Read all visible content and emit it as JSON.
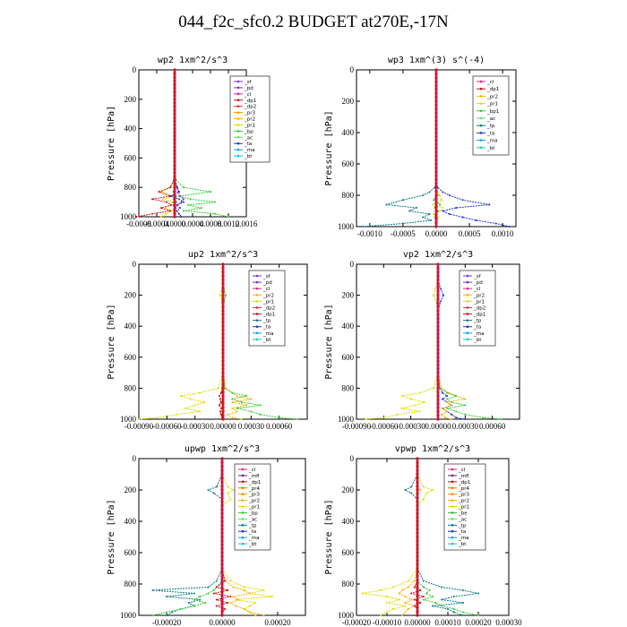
{
  "title": "044_f2c_sfc0.2  BUDGET at270E,-17N",
  "colors": {
    "_sf": "#8a2be2",
    "_pd": "#7b2fbf",
    "_cl": "#e0208a",
    "_mfl": "#5a2a8a",
    "_dp1": "#cc1010",
    "_dp2": "#e03030",
    "_dp3": "#cc1010",
    "_dp4": "#aa1030",
    "_pr1": "#dddd00",
    "_pr2": "#ffb000",
    "_pr3": "#ff8c00",
    "_pr4": "#ff7000",
    "_bp": "#33cc33",
    "_bp1": "#33cc33",
    "_ac": "#66dd66",
    "_be": "#33bb33",
    "_tp": "#0a7a8a",
    "_ta": "#2233cc",
    "_ma": "#00aacc",
    "_bt": "#00cccc",
    "budget": "#cc1010"
  },
  "chart_data": [
    {
      "type": "line",
      "title": "wp2   1xm^2/s^3",
      "ylabel": "Pressure [hPa]",
      "ylim": [
        1000,
        0
      ],
      "xlim": [
        -0.0008,
        0.0016
      ],
      "xticks": [
        "-0.0008",
        "-0.0004",
        "0.0000",
        "0.0004",
        "0.0008",
        "0.0012",
        "0.0016"
      ],
      "yticks": [
        "0",
        "200",
        "400",
        "600",
        "800",
        "1000"
      ],
      "legend": [
        "_sf",
        "_pd",
        "_cl",
        "_dp1",
        "_dp2",
        "_pr3",
        "_pr2",
        "_pr1",
        "_bp",
        "_ac",
        "_ta",
        "_ma",
        "_bt"
      ],
      "pressure": [
        0,
        100,
        200,
        300,
        400,
        500,
        600,
        700,
        750,
        800,
        830,
        860,
        880,
        900,
        920,
        940,
        960,
        980,
        1000
      ],
      "series": [
        {
          "name": "_bp",
          "values": [
            0,
            0,
            0,
            0,
            0,
            0,
            0,
            5e-06,
            3e-05,
            0.0002,
            0.0008,
            0.0001,
            0.00035,
            0.0009,
            0.0003,
            0.0006,
            0.0002,
            0.0009,
            0.0012
          ]
        },
        {
          "name": "_pr1",
          "values": [
            0,
            0,
            0,
            0,
            0,
            0,
            0,
            0,
            -1e-05,
            -8e-05,
            -0.0003,
            -4e-05,
            -0.00026,
            -5e-05,
            -0.0001,
            -0.0002,
            -5e-05,
            -0.0002,
            -0.0003
          ]
        },
        {
          "name": "_dp1",
          "values": [
            0,
            0,
            0,
            0,
            0,
            0,
            0,
            0,
            -2e-05,
            -0.0001,
            -0.00035,
            -0.0001,
            -0.0005,
            -0.00018,
            -8e-05,
            -0.0003,
            -0.0001,
            -0.0005,
            -0.00085
          ]
        },
        {
          "name": "_ta",
          "values": [
            0,
            0,
            0,
            0,
            0,
            0,
            0,
            0,
            1e-05,
            6e-05,
            0.0001,
            -8e-05,
            0.0001,
            0.0002,
            5e-05,
            0.00012,
            5e-05,
            0.0001,
            0.00015
          ]
        },
        {
          "name": "_pd",
          "values": [
            0,
            0,
            0,
            0,
            0,
            0,
            0,
            0,
            1e-05,
            5e-05,
            8e-05,
            0.00012,
            0.0002,
            0.00015,
            6e-05,
            2e-05,
            1e-05,
            1e-05,
            0
          ]
        },
        {
          "name": "_ma",
          "values": [
            0,
            0,
            0,
            0,
            0,
            0,
            0,
            0,
            0,
            2e-05,
            -3e-05,
            3e-05,
            -2e-05,
            4e-05,
            -3e-05,
            2e-05,
            -1e-05,
            1e-05,
            0
          ]
        }
      ]
    },
    {
      "type": "line",
      "title": "wp3   1xm^(3) s^(-4)",
      "ylabel": "Pressure [hPa]",
      "ylim": [
        1000,
        0
      ],
      "xlim": [
        -0.0012,
        0.0012
      ],
      "xticks": [
        "-0.0010",
        "-0.0005",
        "0.0000",
        "0.0005",
        "0.0010"
      ],
      "yticks": [
        "0",
        "200",
        "400",
        "600",
        "800",
        "1000"
      ],
      "legend": [
        "_cl",
        "_dp1",
        "_pr2",
        "_pr1",
        "_bp1",
        "_ac",
        "_tp",
        "_ta",
        "_ma",
        "_bt"
      ],
      "pressure": [
        0,
        100,
        200,
        300,
        400,
        500,
        600,
        700,
        750,
        780,
        800,
        830,
        860,
        880,
        900,
        920,
        940,
        960,
        980,
        1000
      ],
      "series": [
        {
          "name": "_ta",
          "values": [
            0,
            0,
            0,
            0,
            0,
            0,
            0,
            0,
            2e-05,
            0.0001,
            0.0002,
            0.0004,
            0.0008,
            0.0003,
            0.0001,
            0.0002,
            0.0004,
            0.0006,
            0.0009,
            0.0011
          ]
        },
        {
          "name": "_tp",
          "values": [
            0,
            0,
            0,
            0,
            0,
            0,
            0,
            0,
            -2e-05,
            -0.0001,
            -0.0002,
            -0.0005,
            -0.00075,
            -0.0003,
            -0.0004,
            -0.0001,
            -0.0002,
            -8e-05,
            -0.0005,
            -0.0011
          ]
        },
        {
          "name": "_pr1",
          "values": [
            0,
            0,
            0,
            0,
            0,
            0,
            0,
            0,
            0,
            2e-05,
            5e-05,
            8e-05,
            -5e-05,
            0.0001,
            6e-05,
            -4e-05,
            3e-05,
            0,
            0,
            0
          ]
        },
        {
          "name": "_bp1",
          "values": [
            0,
            0,
            0,
            0,
            0,
            0,
            0,
            0,
            0,
            0,
            2e-05,
            -4e-05,
            6e-05,
            -2e-05,
            3e-05,
            1e-05,
            -2e-05,
            1e-05,
            0,
            0
          ]
        }
      ]
    },
    {
      "type": "line",
      "title": "up2   1xm^2/s^3",
      "ylabel": "Pressure [hPa]",
      "ylim": [
        1000,
        0
      ],
      "xlim": [
        -0.0009,
        0.0009
      ],
      "xticks": [
        "-0.00090",
        "-0.00060",
        "-0.00030",
        "0.00000",
        "0.00030",
        "0.00060"
      ],
      "yticks": [
        "0",
        "200",
        "400",
        "600",
        "800",
        "1000"
      ],
      "legend": [
        "_sf",
        "_pd",
        "_cl",
        "_pr2",
        "_pr1",
        "_dp2",
        "_dp1",
        "_tp",
        "_ta",
        "_ma",
        "_bt"
      ],
      "pressure": [
        0,
        100,
        160,
        200,
        240,
        300,
        400,
        500,
        600,
        700,
        800,
        830,
        850,
        870,
        890,
        910,
        930,
        950,
        970,
        990,
        1000
      ],
      "series": [
        {
          "name": "_pr1",
          "values": [
            0,
            0,
            -1e-05,
            -3e-05,
            -1e-05,
            0,
            0,
            0,
            0,
            0,
            -5e-05,
            -0.00025,
            -0.00045,
            -0.00035,
            -0.0002,
            -0.0003,
            -0.0004,
            -0.00025,
            -0.0005,
            -0.0007,
            -0.0009
          ]
        },
        {
          "name": "_pr2",
          "values": [
            0,
            0,
            0,
            0,
            0,
            0,
            0,
            0,
            0,
            0,
            3e-05,
            0.0001,
            0.00015,
            0.0003,
            0.0001,
            0.00025,
            0.0001,
            0.00015,
            5e-05,
            0.0001,
            0.0002
          ]
        },
        {
          "name": "_bp",
          "values": [
            0,
            0,
            1e-05,
            3e-05,
            1e-05,
            0,
            0,
            0,
            0,
            0,
            2e-05,
            0.0001,
            0.00025,
            0.0001,
            0.0002,
            0.0004,
            0.00015,
            0.0003,
            0.0004,
            0.0006,
            0.0008
          ]
        },
        {
          "name": "_dp1",
          "values": [
            0,
            0,
            0,
            0,
            0,
            0,
            0,
            0,
            0,
            0,
            -1e-05,
            -2e-05,
            -4e-05,
            -3e-05,
            -2e-05,
            -4e-05,
            -2e-05,
            -3e-05,
            -2e-05,
            -1e-05,
            0
          ]
        }
      ]
    },
    {
      "type": "line",
      "title": "vp2   1xm^2/s^3",
      "ylabel": "Pressure [hPa]",
      "ylim": [
        1000,
        0
      ],
      "xlim": [
        -0.0009,
        0.0009
      ],
      "xticks": [
        "-0.00090",
        "-0.00060",
        "-0.00030",
        "0.00000",
        "0.00030",
        "0.00060"
      ],
      "yticks": [
        "0",
        "200",
        "400",
        "600",
        "800",
        "1000"
      ],
      "legend": [
        "_sf",
        "_pd",
        "_cl",
        "_pr2",
        "_pr1",
        "_dp2",
        "_dp1",
        "_tp",
        "_ta",
        "_ma",
        "_bt"
      ],
      "pressure": [
        0,
        100,
        160,
        200,
        240,
        300,
        400,
        500,
        600,
        700,
        800,
        830,
        850,
        870,
        890,
        910,
        930,
        950,
        970,
        990,
        1000
      ],
      "series": [
        {
          "name": "_pr1",
          "values": [
            0,
            0,
            -3e-05,
            -5e-05,
            -2e-05,
            0,
            0,
            0,
            0,
            0,
            -5e-05,
            -0.0002,
            -0.0004,
            -0.0003,
            -0.00015,
            -0.00025,
            -0.0004,
            -0.0002,
            -0.00045,
            -0.0006,
            -0.0008
          ]
        },
        {
          "name": "_ta",
          "values": [
            0,
            0,
            3e-05,
            6e-05,
            3e-05,
            0,
            0,
            0,
            0,
            0,
            2e-05,
            5e-05,
            0.0001,
            5e-05,
            0.0001,
            0.00015,
            5e-05,
            0.0001,
            0.00015,
            0.0002,
            0.0003
          ]
        },
        {
          "name": "_pr2",
          "values": [
            0,
            0,
            0,
            0,
            0,
            0,
            0,
            0,
            0,
            0,
            4e-05,
            0.00012,
            0.0002,
            0.0003,
            0.0001,
            0.00015,
            5e-05,
            0.0001,
            4e-05,
            8e-05,
            0.00015
          ]
        },
        {
          "name": "_bp",
          "values": [
            0,
            0,
            0,
            0,
            0,
            0,
            0,
            0,
            0,
            0,
            2e-05,
            0.0001,
            0.0002,
            0.0001,
            0.00015,
            0.0003,
            0.0001,
            0.0002,
            0.0003,
            0.0005,
            0.0007
          ]
        }
      ]
    },
    {
      "type": "line",
      "title": "upwp   1xm^2/s^3",
      "ylabel": "Pressure [hPa]",
      "ylim": [
        1000,
        0
      ],
      "xlim": [
        -0.0003,
        0.0003
      ],
      "xticks": [
        "-0.00020",
        "0.00000",
        "0.00020"
      ],
      "yticks": [
        "0",
        "200",
        "400",
        "600",
        "800",
        "1000"
      ],
      "legend": [
        "_cl",
        "_mfl",
        "_dp1",
        "_pr4",
        "_pr3",
        "_pr2",
        "_pr1",
        "_bp",
        "_ac",
        "_tp",
        "_ta",
        "_ma",
        "_bt"
      ],
      "pressure": [
        0,
        100,
        180,
        200,
        220,
        260,
        300,
        400,
        500,
        600,
        700,
        780,
        820,
        840,
        860,
        880,
        900,
        920,
        940,
        960,
        980,
        1000
      ],
      "series": [
        {
          "name": "_tp",
          "values": [
            0,
            0,
            -2e-05,
            -5e-05,
            -3e-05,
            0,
            0,
            0,
            0,
            0,
            0,
            -2e-05,
            -5e-05,
            -0.00025,
            -0.0001,
            -0.0002,
            -8e-05,
            -0.00012,
            -0.0001,
            -0.00015,
            -0.00018,
            -0.0002
          ]
        },
        {
          "name": "_pr1",
          "values": [
            0,
            0,
            2e-05,
            4e-05,
            2e-05,
            3e-05,
            0,
            0,
            0,
            0,
            0,
            3e-05,
            8e-05,
            0.00015,
            0.0001,
            0.00018,
            5e-05,
            0.00012,
            0.0001,
            8e-05,
            0.0001,
            0.00012
          ]
        },
        {
          "name": "_pr2",
          "values": [
            0,
            0,
            0,
            0,
            0,
            0,
            0,
            0,
            0,
            0,
            0,
            1e-05,
            4e-05,
            8e-05,
            0.0001,
            4e-05,
            6e-05,
            3e-05,
            5e-05,
            8e-05,
            0.0001,
            0.00015
          ]
        },
        {
          "name": "_bp",
          "values": [
            0,
            0,
            0,
            0,
            0,
            0,
            0,
            0,
            0,
            0,
            0,
            0,
            -2e-05,
            -3e-05,
            -5e-05,
            -8e-05,
            -0.0001,
            -6e-05,
            -0.0001,
            -0.00015,
            -0.0002,
            -0.00025
          ]
        },
        {
          "name": "_dp1",
          "values": [
            0,
            0,
            0,
            0,
            0,
            0,
            0,
            0,
            0,
            0,
            0,
            1e-05,
            -2e-05,
            2e-05,
            -3e-05,
            3e-05,
            -2e-05,
            2e-05,
            -2e-05,
            1e-05,
            0,
            0
          ]
        }
      ]
    },
    {
      "type": "line",
      "title": "vpwp   1xm^2/s^3",
      "ylabel": "Pressure [hPa]",
      "ylim": [
        1000,
        0
      ],
      "xlim": [
        -0.0002,
        0.0003
      ],
      "xticks": [
        "-0.00020",
        "-0.00010",
        "0.00000",
        "0.00010",
        "0.00020",
        "0.00030"
      ],
      "yticks": [
        "0",
        "200",
        "400",
        "600",
        "800",
        "1000"
      ],
      "legend": [
        "_cl",
        "_mfl",
        "_dp1",
        "_pr4",
        "_pr3",
        "_pr2",
        "_pr1",
        "_be",
        "_ac",
        "_tp",
        "_ta",
        "_ma",
        "_bt"
      ],
      "pressure": [
        0,
        100,
        180,
        200,
        220,
        260,
        300,
        400,
        500,
        600,
        700,
        780,
        820,
        840,
        860,
        880,
        900,
        920,
        940,
        960,
        980,
        1000
      ],
      "series": [
        {
          "name": "_tp",
          "values": [
            0,
            0,
            -2e-05,
            -4e-05,
            -2e-05,
            0,
            0,
            0,
            0,
            0,
            0,
            2e-05,
            8e-05,
            0.00015,
            0.0002,
            0.00012,
            8e-05,
            0.00015,
            5e-05,
            0.0001,
            0.00012,
            0.00015
          ]
        },
        {
          "name": "_pr1",
          "values": [
            0,
            0,
            2e-05,
            5e-05,
            3e-05,
            2e-05,
            0,
            0,
            0,
            0,
            0,
            -3e-05,
            -8e-05,
            -0.00012,
            -0.00018,
            -0.0001,
            -6e-05,
            -0.0001,
            -4e-05,
            -8e-05,
            -0.0001,
            -0.00012
          ]
        },
        {
          "name": "_pr2",
          "values": [
            0,
            0,
            0,
            1e-05,
            0,
            0,
            0,
            0,
            0,
            0,
            0,
            -1e-05,
            -3e-05,
            -5e-05,
            -6e-05,
            -4e-05,
            -2e-05,
            -4e-05,
            -1e-05,
            -3e-05,
            -4e-05,
            -5e-05
          ]
        },
        {
          "name": "_bp",
          "values": [
            0,
            0,
            0,
            0,
            0,
            0,
            0,
            0,
            0,
            0,
            0,
            0,
            2e-05,
            4e-05,
            3e-05,
            5e-05,
            2e-05,
            6e-05,
            8e-05,
            0.00012,
            0.00015,
            0.0002
          ]
        },
        {
          "name": "_dp1",
          "values": [
            0,
            0,
            0,
            0,
            0,
            0,
            0,
            0,
            0,
            0,
            0,
            0,
            -1e-05,
            1e-05,
            -2e-05,
            2e-05,
            -1e-05,
            1e-05,
            -1e-05,
            0,
            0,
            0
          ]
        }
      ]
    }
  ]
}
